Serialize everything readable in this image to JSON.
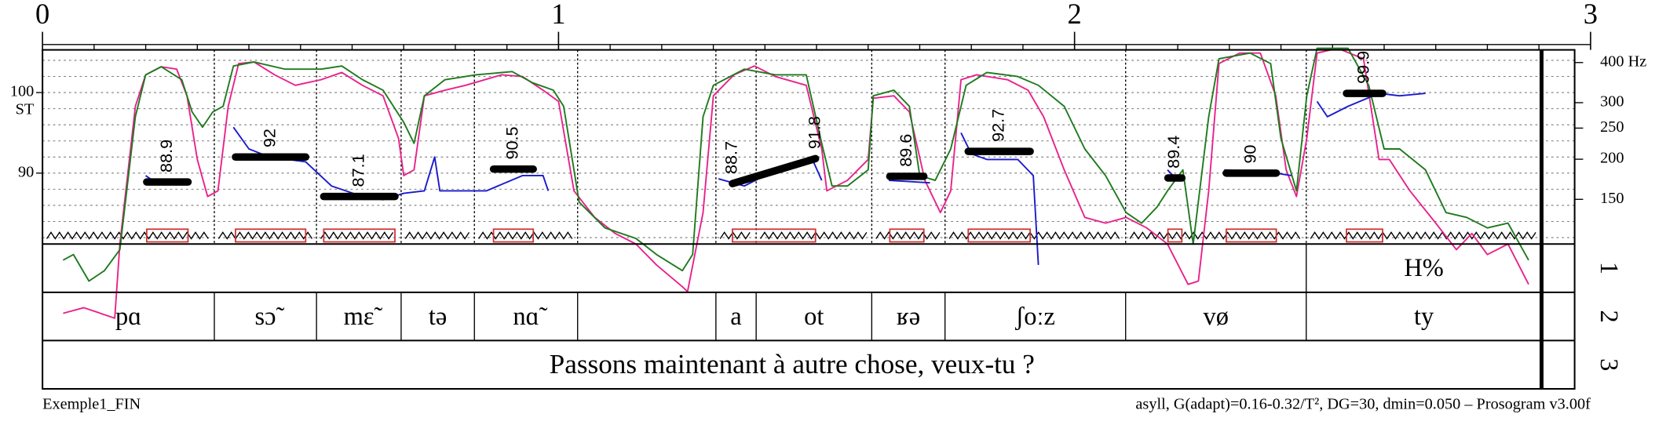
{
  "chart_data": {
    "type": "prosogram",
    "xlim": [
      0,
      3
    ],
    "xticks": [
      0,
      1,
      2,
      3
    ],
    "xminor_ticks": [
      0.1,
      0.2,
      0.3,
      0.4,
      0.5,
      0.6,
      0.7,
      0.8,
      0.9,
      1.1,
      1.2,
      1.3,
      1.4,
      1.5,
      1.6,
      1.7,
      1.8,
      1.9,
      2.1,
      2.2,
      2.3,
      2.4,
      2.5,
      2.6,
      2.7,
      2.8,
      2.9
    ],
    "ylim": [
      81.2,
      105.3
    ],
    "yticks": [
      90,
      100
    ],
    "ylabel": "ST",
    "ygrid": [
      82,
      84,
      86,
      88,
      90,
      92,
      94,
      96,
      98,
      100,
      102,
      104
    ],
    "y2scale": "semitone_hz",
    "y2ticks": [
      {
        "value": 400,
        "label": "400 Hz"
      },
      300,
      250,
      200,
      150
    ],
    "curves": [
      {
        "color": "#e8228c",
        "x": [
          0.04,
          0.08,
          0.14,
          0.15,
          0.18,
          0.2,
          0.23,
          0.26,
          0.28,
          0.3,
          0.32,
          0.34,
          0.36,
          0.38,
          0.41,
          0.45,
          0.49,
          0.54,
          0.58,
          0.62,
          0.66,
          0.69,
          0.7,
          0.72,
          0.74,
          0.78,
          0.82,
          0.89,
          0.93,
          0.97,
          1.0,
          1.03,
          1.07,
          1.11,
          1.15,
          1.19,
          1.24,
          1.25,
          1.28,
          1.3,
          1.34,
          1.38,
          1.42,
          1.48,
          1.51,
          1.52,
          1.56,
          1.6,
          1.61,
          1.65,
          1.68,
          1.71,
          1.74,
          1.76,
          1.78,
          1.81,
          1.87,
          1.91,
          1.94,
          1.98,
          2.02,
          2.06,
          2.1,
          2.14,
          2.18,
          2.22,
          2.24,
          2.26,
          2.28,
          2.32,
          2.36,
          2.39,
          2.41,
          2.43,
          2.45,
          2.47,
          2.51,
          2.56,
          2.59,
          2.61,
          2.65,
          2.7,
          2.74,
          2.77,
          2.8,
          2.84,
          2.88
        ],
        "values": [
          72.6,
          73.3,
          72.0,
          81.2,
          98.3,
          102.2,
          103.2,
          102.9,
          99.6,
          91.7,
          87.1,
          87.8,
          98.3,
          103.6,
          103.8,
          102.2,
          100.9,
          101.6,
          102.5,
          100.9,
          99.6,
          94.3,
          89.7,
          90.4,
          99.6,
          100.3,
          100.9,
          102.2,
          102.0,
          100.3,
          98.9,
          87.8,
          84.5,
          82.5,
          81.2,
          78.6,
          75.9,
          75.3,
          85.1,
          99.6,
          102.2,
          103.3,
          102.0,
          100.9,
          93.0,
          87.8,
          89.1,
          91.7,
          99.3,
          99.6,
          97.6,
          89.1,
          85.1,
          87.8,
          101.6,
          102.2,
          101.6,
          100.3,
          97.0,
          90.4,
          84.5,
          83.8,
          84.5,
          83.2,
          81.2,
          76.2,
          76.6,
          87.8,
          103.6,
          104.9,
          104.9,
          99.6,
          90.4,
          87.1,
          94.3,
          104.9,
          105.5,
          104.2,
          91.7,
          91.7,
          87.8,
          83.8,
          80.5,
          82.5,
          79.9,
          81.2,
          76.2
        ]
      },
      {
        "color": "#1e7a1e",
        "x": [
          0.04,
          0.06,
          0.09,
          0.12,
          0.15,
          0.18,
          0.2,
          0.23,
          0.27,
          0.29,
          0.31,
          0.33,
          0.35,
          0.37,
          0.41,
          0.47,
          0.54,
          0.58,
          0.62,
          0.66,
          0.7,
          0.72,
          0.74,
          0.78,
          0.84,
          0.91,
          0.95,
          0.99,
          1.01,
          1.04,
          1.09,
          1.15,
          1.19,
          1.24,
          1.26,
          1.28,
          1.3,
          1.36,
          1.42,
          1.48,
          1.51,
          1.53,
          1.56,
          1.6,
          1.61,
          1.65,
          1.68,
          1.7,
          1.73,
          1.76,
          1.79,
          1.83,
          1.89,
          1.93,
          1.98,
          2.02,
          2.06,
          2.1,
          2.13,
          2.16,
          2.18,
          2.21,
          2.23,
          2.26,
          2.28,
          2.34,
          2.38,
          2.4,
          2.43,
          2.45,
          2.47,
          2.53,
          2.57,
          2.6,
          2.63,
          2.68,
          2.72,
          2.76,
          2.8,
          2.84,
          2.88
        ],
        "values": [
          79.2,
          79.9,
          76.6,
          77.9,
          80.5,
          97.0,
          102.2,
          103.2,
          101.6,
          97.6,
          95.7,
          97.6,
          98.3,
          103.3,
          103.8,
          102.9,
          102.9,
          103.3,
          101.6,
          100.3,
          96.3,
          93.7,
          99.6,
          101.6,
          102.2,
          102.6,
          101.2,
          100.3,
          98.3,
          86.4,
          83.2,
          81.9,
          79.9,
          77.9,
          79.9,
          97.0,
          100.9,
          102.9,
          102.2,
          102.2,
          93.7,
          88.4,
          88.4,
          90.4,
          99.6,
          100.3,
          98.3,
          89.7,
          89.1,
          93.0,
          100.9,
          102.5,
          102.0,
          100.9,
          98.3,
          93.0,
          89.7,
          85.1,
          83.8,
          85.8,
          87.8,
          90.4,
          81.2,
          97.0,
          104.2,
          104.9,
          103.6,
          94.3,
          87.8,
          99.6,
          105.5,
          105.5,
          100.9,
          93.0,
          93.0,
          90.4,
          85.1,
          84.5,
          83.2,
          83.8,
          79.2
        ]
      },
      {
        "color": "#1a1acc",
        "x": [
          0.2,
          0.22,
          0.28,
          null,
          0.37,
          0.4,
          0.44,
          0.51,
          0.56,
          0.62,
          0.66,
          0.7,
          0.74,
          0.76,
          0.77,
          0.86,
          0.93,
          0.97,
          0.98,
          null,
          1.31,
          1.36,
          1.44,
          1.49,
          1.51,
          null,
          1.64,
          1.72,
          null,
          1.78,
          1.8,
          1.83,
          1.89,
          1.92,
          1.93,
          null,
          2.18,
          2.2,
          null,
          2.29,
          2.39,
          2.42,
          null,
          2.47,
          2.49,
          2.53,
          2.59,
          2.63,
          2.68
        ],
        "values": [
          89.7,
          88.8,
          88.8,
          null,
          95.7,
          93.0,
          92.0,
          91.4,
          88.4,
          87.1,
          86.7,
          87.5,
          87.8,
          92.0,
          87.8,
          87.8,
          89.7,
          89.7,
          87.8,
          null,
          89.3,
          88.4,
          91.0,
          92.0,
          89.1,
          null,
          89.1,
          88.8,
          null,
          95.0,
          92.4,
          91.7,
          91.7,
          89.7,
          78.6,
          null,
          90.4,
          89.1,
          null,
          90.4,
          90.0,
          89.7,
          null,
          98.9,
          97.0,
          98.3,
          99.9,
          99.6,
          99.9
        ]
      }
    ],
    "stylization": {
      "color": "#000000",
      "nucleus_color": "#d03030",
      "segments": [
        {
          "x": [
            0.202,
            0.282
          ],
          "values": [
            88.9
          ]
        },
        {
          "x": [
            0.374,
            0.51
          ],
          "values": [
            92.0
          ]
        },
        {
          "x": [
            0.545,
            0.683
          ],
          "values": [
            87.1
          ]
        },
        {
          "x": [
            0.874,
            0.951
          ],
          "values": [
            90.5
          ]
        },
        {
          "x": [
            1.337,
            1.498
          ],
          "values": [
            88.7,
            91.8
          ]
        },
        {
          "x": [
            1.642,
            1.708
          ],
          "values": [
            89.6
          ]
        },
        {
          "x": [
            1.794,
            1.914
          ],
          "values": [
            92.7
          ]
        },
        {
          "x": [
            2.181,
            2.208
          ],
          "values": [
            89.4
          ]
        },
        {
          "x": [
            2.294,
            2.391
          ],
          "values": [
            90.0
          ]
        },
        {
          "x": [
            2.527,
            2.597
          ],
          "values": [
            99.9
          ]
        }
      ]
    },
    "tiers": [
      {
        "name": "1",
        "boundaries": [
          0,
          2.449,
          2.905
        ],
        "labels": [
          null,
          "H%"
        ]
      },
      {
        "name": "2",
        "boundaries": [
          0,
          0.333,
          0.531,
          0.695,
          0.837,
          1.037,
          1.305,
          1.383,
          1.607,
          1.749,
          2.099,
          2.449,
          2.905
        ],
        "labels": [
          "pɑ",
          "sɔ̃",
          "mɛ̃",
          "tə",
          "nɑ̃",
          null,
          "a",
          "ot",
          "ʁə",
          "ʃoːz",
          "vø",
          "ty"
        ]
      },
      {
        "name": "3",
        "boundaries": [
          0,
          2.905
        ],
        "labels": [
          "Passons maintenant à autre chose, veux-tu ?"
        ]
      }
    ],
    "footer_left": "Exemple1_FIN",
    "footer_right": "asyll, G(adapt)=0.16-0.32/T², DG=30, dmin=0.050 – Prosogram v3.00f"
  }
}
